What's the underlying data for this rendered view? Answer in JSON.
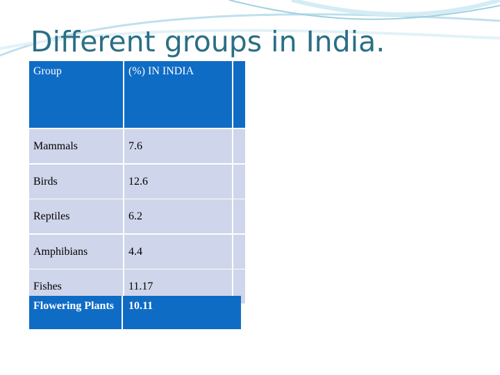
{
  "title": "Different groups in India.",
  "table": {
    "header": [
      "Group",
      "(%)  IN INDIA"
    ],
    "rows": [
      [
        "Mammals",
        "7.6"
      ],
      [
        "Birds",
        "12.6"
      ],
      [
        "Reptiles",
        "6.2"
      ],
      [
        "Amphibians",
        "4.4"
      ],
      [
        "Fishes",
        "11.17"
      ],
      [
        "Flowering Plants",
        "10.11"
      ]
    ]
  }
}
